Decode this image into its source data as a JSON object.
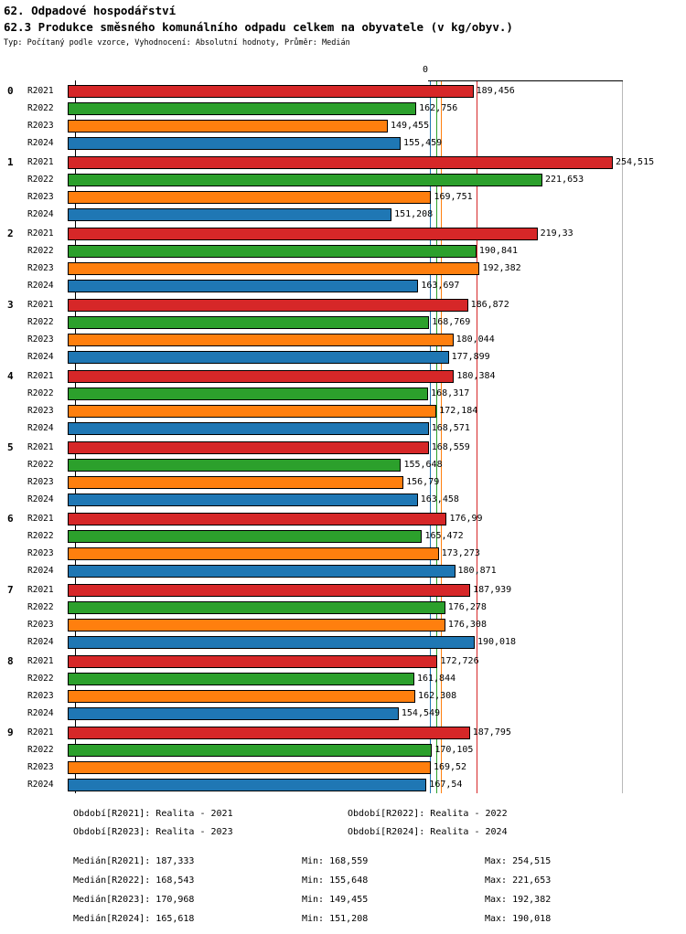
{
  "header": {
    "section_title": "62. Odpadové hospodářství",
    "subtitle": "Typ: Počítaný podle vzorce, Vyhodnocení: Absolutní hodnoty, Průměr: Medián"
  },
  "chart_data": {
    "type": "bar",
    "orientation": "horizontal",
    "title": "62.3 Produkce směsného komunálního odpadu celkem na obyvatele (v kg/obyv.)",
    "unit": "kg/obyv.",
    "axis_zero_label": "0",
    "xlim": [
      0,
      255.4
    ],
    "value_format": "czech-decimal-comma",
    "series": [
      {
        "name": "R2021",
        "color": "#d62728",
        "median": 187.333
      },
      {
        "name": "R2022",
        "color": "#2ca02c",
        "median": 168.543
      },
      {
        "name": "R2023",
        "color": "#ff7f0e",
        "median": 170.968
      },
      {
        "name": "R2024",
        "color": "#1f77b4",
        "median": 165.618
      }
    ],
    "groups": [
      {
        "label": "0",
        "values": [
          189.456,
          162.756,
          149.455,
          155.459
        ]
      },
      {
        "label": "1",
        "values": [
          254.515,
          221.653,
          169.751,
          151.208
        ]
      },
      {
        "label": "2",
        "values": [
          219.33,
          190.841,
          192.382,
          163.697
        ]
      },
      {
        "label": "3",
        "values": [
          186.872,
          168.769,
          180.044,
          177.899
        ]
      },
      {
        "label": "4",
        "values": [
          180.384,
          168.317,
          172.184,
          168.571
        ]
      },
      {
        "label": "5",
        "values": [
          168.559,
          155.648,
          156.79,
          163.458
        ]
      },
      {
        "label": "6",
        "values": [
          176.99,
          165.472,
          173.273,
          180.871
        ]
      },
      {
        "label": "7",
        "values": [
          187.939,
          176.278,
          176.308,
          190.018
        ]
      },
      {
        "label": "8",
        "values": [
          172.726,
          161.844,
          162.308,
          154.549
        ]
      },
      {
        "label": "9",
        "values": [
          187.795,
          170.105,
          169.52,
          167.54
        ]
      }
    ]
  },
  "legend": {
    "items": [
      "Období[R2021]: Realita - 2021",
      "Období[R2022]: Realita - 2022",
      "Období[R2023]: Realita - 2023",
      "Období[R2024]: Realita - 2024"
    ]
  },
  "stats": {
    "rows": [
      {
        "median": "Medián[R2021]: 187,333",
        "min": "Min: 168,559",
        "max": "Max: 254,515"
      },
      {
        "median": "Medián[R2022]: 168,543",
        "min": "Min: 155,648",
        "max": "Max: 221,653"
      },
      {
        "median": "Medián[R2023]: 170,968",
        "min": "Min: 149,455",
        "max": "Max: 192,382"
      },
      {
        "median": "Medián[R2024]: 165,618",
        "min": "Min: 151,208",
        "max": "Max: 190,018"
      }
    ]
  }
}
